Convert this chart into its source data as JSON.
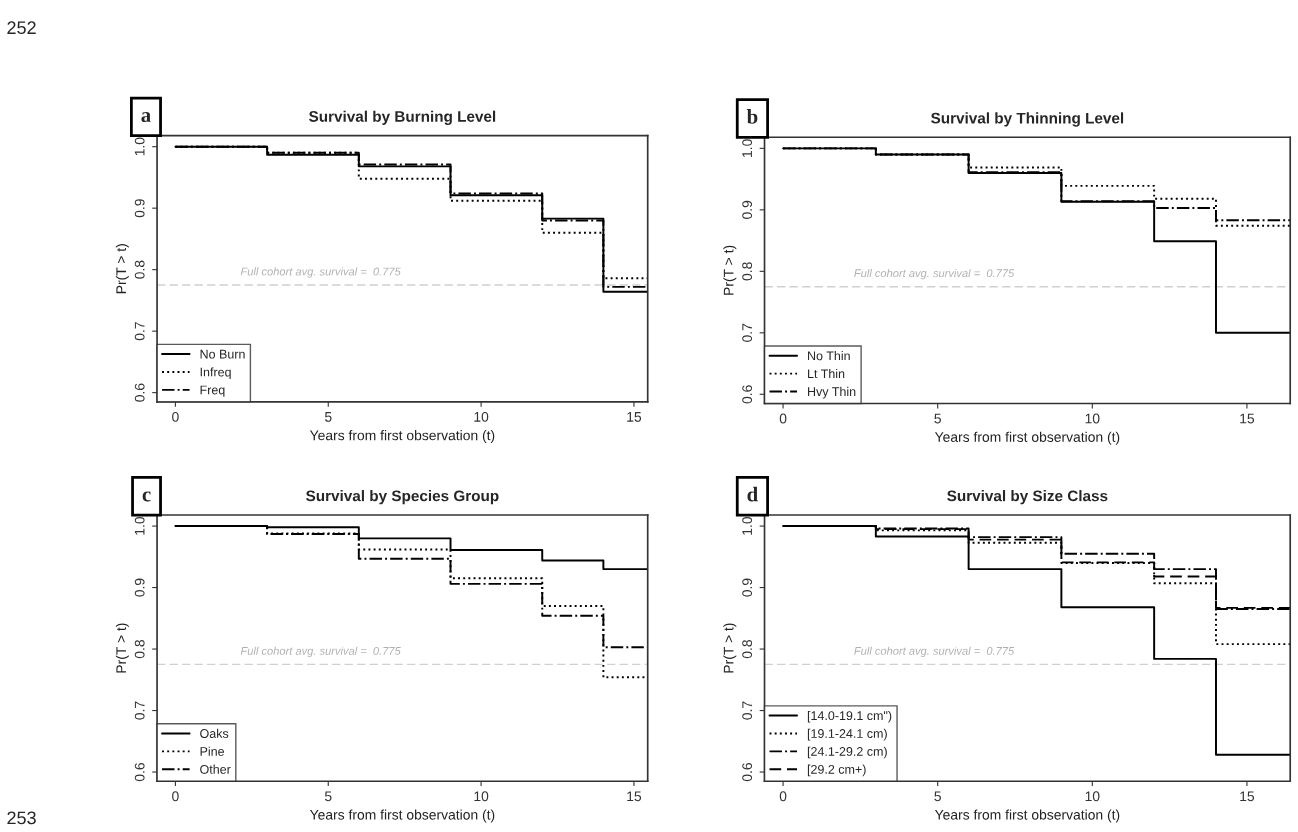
{
  "chart_data": [
    {
      "type": "step",
      "title": "Survival by Burning Level",
      "xlabel": "Years from first observation (t)",
      "ylabel": "Pr(T > t)",
      "xlim": [
        -0.6,
        15.45
      ],
      "ylim": [
        0.585,
        1.018
      ],
      "xticks": [
        0,
        5,
        10,
        15
      ],
      "yticks": [
        {
          "value": 0.6,
          "label": "0.6"
        },
        {
          "value": 0.7,
          "label": "0.7"
        },
        {
          "value": 0.8,
          "label": "0.8"
        },
        {
          "value": 0.9,
          "label": "0.9"
        },
        {
          "value": 1.0,
          "label": "1.0"
        }
      ],
      "grid": false,
      "legend": "bottom left",
      "annotations": [
        "a",
        "252"
      ],
      "ref_lines": [
        {
          "axis": "y",
          "value": 0.775,
          "label": "Full cohort avg. survival =  0.775",
          "color": "#d0d0d0",
          "line_style": "dashed"
        }
      ],
      "x": [
        0,
        3,
        6,
        9,
        12,
        14,
        15.45
      ],
      "series": [
        {
          "name": "No Burn",
          "color": "#000000",
          "line_style": "solid",
          "values": [
            1.0,
            0.987,
            0.968,
            0.921,
            0.883,
            0.764,
            0.764
          ]
        },
        {
          "name": "Infreq",
          "color": "#000000",
          "line_style": "dotted",
          "values": [
            1.0,
            0.99,
            0.948,
            0.912,
            0.86,
            0.786,
            0.786
          ]
        },
        {
          "name": "Freq",
          "color": "#000000",
          "line_style": "dashdot",
          "values": [
            1.0,
            0.99,
            0.971,
            0.924,
            0.88,
            0.772,
            0.772
          ]
        }
      ]
    },
    {
      "type": "step",
      "title": "Survival by Thinning Level",
      "xlabel": "Years from first observation (t)",
      "ylabel": "Pr(T > t)",
      "xlim": [
        -0.6,
        16.4
      ],
      "ylim": [
        0.585,
        1.018
      ],
      "xticks": [
        0,
        5,
        10,
        15
      ],
      "yticks": [
        {
          "value": 0.6,
          "label": "0.6"
        },
        {
          "value": 0.7,
          "label": "0.7"
        },
        {
          "value": 0.8,
          "label": "0.8"
        },
        {
          "value": 0.9,
          "label": "0.9"
        },
        {
          "value": 1.0,
          "label": "1.0"
        }
      ],
      "grid": false,
      "legend": "bottom left",
      "annotations": [
        "b"
      ],
      "ref_lines": [
        {
          "axis": "y",
          "value": 0.775,
          "label": "Full cohort avg. survival =  0.775",
          "color": "#d0d0d0",
          "line_style": "dashed"
        }
      ],
      "x": [
        0,
        3,
        6,
        9,
        12,
        14,
        16.4
      ],
      "series": [
        {
          "name": "No Thin",
          "color": "#000000",
          "line_style": "solid",
          "values": [
            1.0,
            0.99,
            0.96,
            0.913,
            0.849,
            0.7,
            0.7
          ]
        },
        {
          "name": "Lt Thin",
          "color": "#000000",
          "line_style": "dotted",
          "values": [
            1.0,
            0.99,
            0.969,
            0.939,
            0.918,
            0.874,
            0.874
          ]
        },
        {
          "name": "Hvy Thin",
          "color": "#000000",
          "line_style": "dashdot",
          "values": [
            1.0,
            0.99,
            0.961,
            0.914,
            0.903,
            0.883,
            0.883
          ]
        }
      ]
    },
    {
      "type": "step",
      "title": "Survival by Species Group",
      "xlabel": "Years from first observation (t)",
      "ylabel": "Pr(T > t)",
      "xlim": [
        -0.6,
        15.45
      ],
      "ylim": [
        0.585,
        1.018
      ],
      "xticks": [
        0,
        5,
        10,
        15
      ],
      "yticks": [
        {
          "value": 0.6,
          "label": "0.6"
        },
        {
          "value": 0.7,
          "label": "0.7"
        },
        {
          "value": 0.8,
          "label": "0.8"
        },
        {
          "value": 0.9,
          "label": "0.9"
        },
        {
          "value": 1.0,
          "label": "1.0"
        }
      ],
      "grid": false,
      "legend": "bottom left",
      "annotations": [
        "c",
        "253"
      ],
      "ref_lines": [
        {
          "axis": "y",
          "value": 0.775,
          "label": "Full cohort avg. survival =  0.775",
          "color": "#d0d0d0",
          "line_style": "dashed"
        }
      ],
      "x": [
        0,
        3,
        6,
        9,
        12,
        14,
        15.45
      ],
      "series": [
        {
          "name": "Oaks",
          "color": "#000000",
          "line_style": "solid",
          "values": [
            1.0,
            0.998,
            0.98,
            0.961,
            0.944,
            0.93,
            0.93
          ]
        },
        {
          "name": "Pine",
          "color": "#000000",
          "line_style": "dotted",
          "values": [
            1.0,
            0.988,
            0.962,
            0.915,
            0.87,
            0.754,
            0.754
          ]
        },
        {
          "name": "Other",
          "color": "#000000",
          "line_style": "dashdot",
          "values": [
            1.0,
            0.987,
            0.947,
            0.906,
            0.854,
            0.803,
            0.803
          ]
        }
      ]
    },
    {
      "type": "step",
      "title": "Survival by Size Class",
      "xlabel": "Years from first observation (t)",
      "ylabel": "Pr(T > t)",
      "xlim": [
        -0.6,
        16.4
      ],
      "ylim": [
        0.585,
        1.018
      ],
      "xticks": [
        0,
        5,
        10,
        15
      ],
      "yticks": [
        {
          "value": 0.6,
          "label": "0.6"
        },
        {
          "value": 0.7,
          "label": "0.7"
        },
        {
          "value": 0.8,
          "label": "0.8"
        },
        {
          "value": 0.9,
          "label": "0.9"
        },
        {
          "value": 1.0,
          "label": "1.0"
        }
      ],
      "grid": false,
      "legend": "bottom left",
      "annotations": [
        "d"
      ],
      "ref_lines": [
        {
          "axis": "y",
          "value": 0.775,
          "label": "Full cohort avg. survival =  0.775",
          "color": "#d0d0d0",
          "line_style": "dashed"
        }
      ],
      "x": [
        0,
        3,
        6,
        9,
        12,
        14,
        16.4
      ],
      "series": [
        {
          "name": "[14.0-19.1 cm\")",
          "color": "#000000",
          "line_style": "solid",
          "values": [
            1.0,
            0.983,
            0.93,
            0.868,
            0.784,
            0.628,
            0.628
          ]
        },
        {
          "name": "[19.1-24.1 cm)",
          "color": "#000000",
          "line_style": "dotted",
          "values": [
            1.0,
            0.993,
            0.973,
            0.94,
            0.907,
            0.808,
            0.808
          ]
        },
        {
          "name": "[24.1-29.2 cm)",
          "color": "#000000",
          "line_style": "dashdot",
          "values": [
            1.0,
            0.996,
            0.982,
            0.955,
            0.93,
            0.865,
            0.865
          ]
        },
        {
          "name": "[29.2 cm+)",
          "color": "#000000",
          "line_style": "dashed",
          "values": [
            1.0,
            0.995,
            0.978,
            0.941,
            0.918,
            0.867,
            0.867
          ]
        }
      ]
    }
  ]
}
